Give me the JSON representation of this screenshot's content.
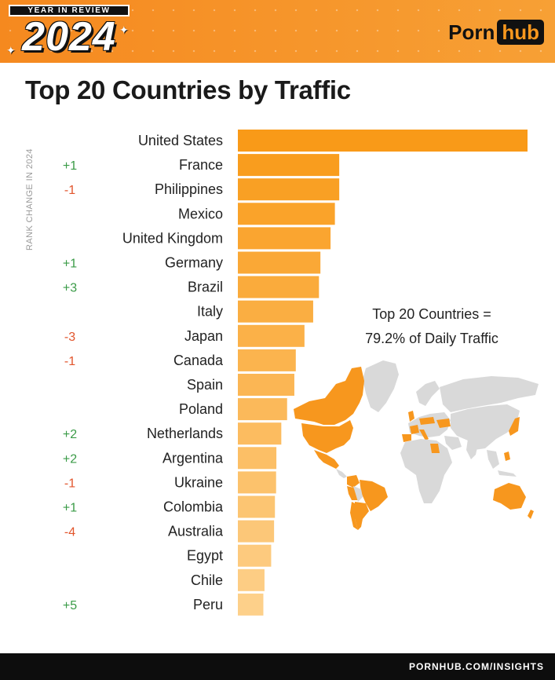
{
  "header": {
    "badge": "YEAR IN REVIEW",
    "year": "2024",
    "logo_left": "Porn",
    "logo_right": "hub"
  },
  "colors": {
    "brand_orange": "#f7971e",
    "bar_top": "#f99a18",
    "bar_bottom": "#fdd08a",
    "positive_change": "#3a9b47",
    "negative_change": "#e2552c",
    "map_land": "#d9d9d9",
    "map_highlight": "#f7971e"
  },
  "chart_data": {
    "type": "bar",
    "orientation": "horizontal",
    "title": "Top 20 Countries by Traffic",
    "rank_change_label": "RANK CHANGE IN 2024",
    "categories": [
      "United States",
      "France",
      "Philippines",
      "Mexico",
      "United Kingdom",
      "Germany",
      "Brazil",
      "Italy",
      "Japan",
      "Canada",
      "Spain",
      "Poland",
      "Netherlands",
      "Argentina",
      "Ukraine",
      "Colombia",
      "Australia",
      "Egypt",
      "Chile",
      "Peru"
    ],
    "values": [
      100,
      35,
      35,
      33.5,
      32,
      28.5,
      28,
      26,
      23,
      20,
      19.5,
      17,
      15,
      13.3,
      13.2,
      12.8,
      12.5,
      11.5,
      9.2,
      8.8
    ],
    "value_units": "relative traffic (US = 100), estimated from bar lengths",
    "rank_changes": [
      "",
      "+1",
      "-1",
      "",
      "",
      "+1",
      "+3",
      "",
      "-3",
      "-1",
      "",
      "",
      "+2",
      "+2",
      "-1",
      "+1",
      "-4",
      "",
      "",
      "+5"
    ],
    "xlim": [
      0,
      100
    ]
  },
  "summary": {
    "line1": "Top 20 Countries =",
    "line2": "79.2% of Daily Traffic"
  },
  "footer": {
    "url": "PORNHUB.COM/INSIGHTS"
  }
}
